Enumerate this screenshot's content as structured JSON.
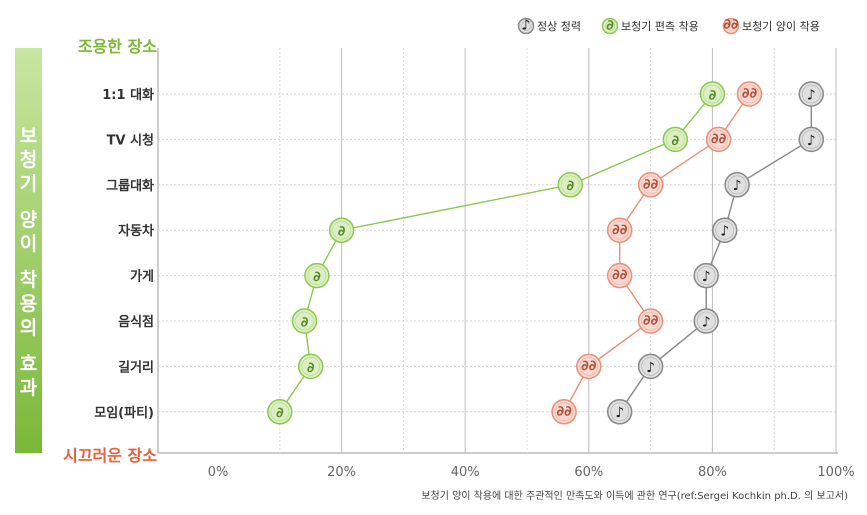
{
  "chart_data": {
    "type": "line",
    "orientation": "horizontal",
    "categories": [
      "1:1 대화",
      "TV 시청",
      "그룹대화",
      "자동차",
      "가게",
      "음식점",
      "길거리",
      "모임(파티)"
    ],
    "series": [
      {
        "name": "정상 청력",
        "color": "#888888",
        "fill": "#e0e0e0",
        "icon": "music-note-icon",
        "values": [
          96,
          96,
          84,
          82,
          79,
          79,
          70,
          65
        ]
      },
      {
        "name": "보청기 편측 착용",
        "color": "#8cc850",
        "fill": "#dcefc4",
        "icon": "ear-icon",
        "values": [
          80,
          74,
          57,
          20,
          16,
          14,
          15,
          10
        ]
      },
      {
        "name": "보청기 양이 착용",
        "color": "#e8907a",
        "fill": "#f8d8d0",
        "icon": "two-ears-icon",
        "values": [
          86,
          81,
          70,
          65,
          65,
          70,
          60,
          56
        ]
      }
    ],
    "xlim": [
      0,
      100
    ],
    "xticks": [
      "0%",
      "20%",
      "40%",
      "60%",
      "80%",
      "100%"
    ],
    "grid": true,
    "legend_position": "top-right",
    "y_axis_title": [
      "보",
      "청",
      "기",
      "양",
      "이",
      "착",
      "용",
      "의",
      "효",
      "과"
    ],
    "y_top_label": "조용한 장소",
    "y_bottom_label": "시끄러운 장소",
    "source": "보청기 양이 착용에 대한 주관적인 만족도와 이득에 관한 연구(ref:Sergei Kochkin ph.D. 의 보고서)"
  },
  "colors": {
    "side_bar_top": "#c8e6a0",
    "side_bar_bottom": "#7ab838",
    "quiet": "#7ab838",
    "loud": "#e8603a"
  }
}
